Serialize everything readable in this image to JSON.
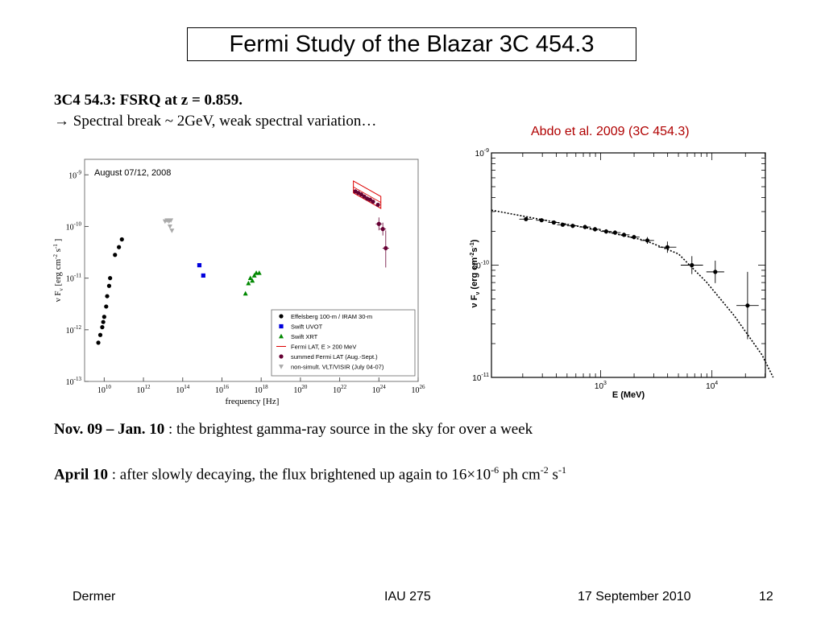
{
  "slide": {
    "title": "Fermi Study of the Blazar 3C 454.3",
    "line1": "3C4 54.3: FSRQ at z = 0.859.",
    "line2_arrow": "→",
    "line2_text": " Spectral break ~ 2GeV, weak spectral variation…",
    "citation": "Abdo et al. 2009 (3C 454.3)",
    "bullet1": {
      "bold": "Nov. 09 – Jan. 10",
      "text": " : the brightest gamma-ray source in the sky for over a week"
    },
    "bullet2": {
      "bold": "April 10",
      "text": " : after slowly decaying, the flux brightened up again to 16×10",
      "exp1": "-6",
      "unit": " ph cm",
      "exp2": "-2",
      "unit2": " s",
      "exp3": "-1"
    },
    "footer": {
      "author": "Dermer",
      "event": "IAU 275",
      "date": "17 September 2010",
      "page": "12"
    }
  },
  "chart_data": [
    {
      "type": "scatter",
      "title": "August 07/12, 2008",
      "xlabel": "frequency [Hz]",
      "ylabel": "ν F",
      "ylabel_sub": "ν",
      "ylabel_unit": " [erg cm",
      "ylabel_exp1": "-2",
      "ylabel_mid": " s",
      "ylabel_exp2": "-1",
      "ylabel_end": " ]",
      "xscale": "log",
      "yscale": "log",
      "xlim_exp": [
        9,
        26
      ],
      "ylim_exp": [
        -13,
        -8.7
      ],
      "xticks": [
        {
          "base": "10",
          "exp": "10"
        },
        {
          "base": "10",
          "exp": "12"
        },
        {
          "base": "10",
          "exp": "14"
        },
        {
          "base": "10",
          "exp": "16"
        },
        {
          "base": "10",
          "exp": "18"
        },
        {
          "base": "10",
          "exp": "20"
        },
        {
          "base": "10",
          "exp": "22"
        },
        {
          "base": "10",
          "exp": "24"
        },
        {
          "base": "10",
          "exp": "26"
        }
      ],
      "yticks": [
        {
          "base": "10",
          "exp": "-13"
        },
        {
          "base": "10",
          "exp": "-12"
        },
        {
          "base": "10",
          "exp": "-11"
        },
        {
          "base": "10",
          "exp": "-10"
        },
        {
          "base": "10",
          "exp": "-9"
        }
      ],
      "legend": [
        {
          "name": "Effelsberg 100-m / IRAM 30-m",
          "color": "#000000",
          "marker": "circle"
        },
        {
          "name": "Swift UVOT",
          "color": "#0000dd",
          "marker": "square"
        },
        {
          "name": "Swift XRT",
          "color": "#008800",
          "marker": "triangle"
        },
        {
          "name": "Fermi LAT, E > 200 MeV",
          "color": "#dd0000",
          "marker": "line"
        },
        {
          "name": "summed Fermi LAT (Aug.-Sept.)",
          "color": "#660033",
          "marker": "circle"
        },
        {
          "name": "non-simult. VLT/VISIR (July 04-07)",
          "color": "#aaaaaa",
          "marker": "triangle-down"
        }
      ],
      "series": [
        {
          "name": "Effelsberg 100-m / IRAM 30-m",
          "color": "#000000",
          "marker": "circle",
          "points": [
            [
              9.7,
              -12.25
            ],
            [
              9.8,
              -12.1
            ],
            [
              9.9,
              -11.95
            ],
            [
              9.95,
              -11.85
            ],
            [
              10.0,
              -11.75
            ],
            [
              10.1,
              -11.55
            ],
            [
              10.15,
              -11.35
            ],
            [
              10.25,
              -11.15
            ],
            [
              10.3,
              -11.0
            ],
            [
              10.55,
              -10.55
            ],
            [
              10.75,
              -10.4
            ],
            [
              10.9,
              -10.25
            ]
          ]
        },
        {
          "name": "Swift UVOT",
          "color": "#0000dd",
          "marker": "square",
          "points": [
            [
              14.85,
              -10.75
            ],
            [
              15.05,
              -10.95
            ]
          ]
        },
        {
          "name": "Swift XRT",
          "color": "#008800",
          "marker": "triangle",
          "points": [
            [
              17.2,
              -11.3
            ],
            [
              17.35,
              -11.1
            ],
            [
              17.45,
              -11.0
            ],
            [
              17.55,
              -11.05
            ],
            [
              17.65,
              -10.95
            ],
            [
              17.75,
              -10.9
            ],
            [
              17.9,
              -10.9
            ]
          ]
        },
        {
          "name": "summed Fermi LAT (Aug.-Sept.)",
          "color": "#660033",
          "marker": "circle",
          "points": [
            [
              22.8,
              -9.32
            ],
            [
              22.95,
              -9.35
            ],
            [
              23.1,
              -9.38
            ],
            [
              23.25,
              -9.42
            ],
            [
              23.4,
              -9.46
            ],
            [
              23.55,
              -9.48
            ],
            [
              23.7,
              -9.52
            ],
            [
              23.95,
              -9.58
            ],
            [
              24.0,
              -9.95
            ],
            [
              24.2,
              -10.05
            ],
            [
              24.35,
              -10.42
            ]
          ]
        },
        {
          "name": "non-simult. VLT/VISIR (July 04-07)",
          "color": "#aaaaaa",
          "marker": "triangle-down",
          "points": [
            [
              13.1,
              -9.9
            ],
            [
              13.2,
              -9.88
            ],
            [
              13.3,
              -9.9
            ],
            [
              13.4,
              -9.88
            ],
            [
              13.35,
              -10.0
            ],
            [
              13.45,
              -10.08
            ]
          ]
        }
      ],
      "bowtie": {
        "x": [
          22.7,
          24.1
        ],
        "upper": [
          -9.12,
          -9.42
        ],
        "lower": [
          -9.35,
          -9.65
        ]
      }
    },
    {
      "type": "scatter",
      "xlabel": "E (MeV)",
      "ylabel": "ν F",
      "ylabel_sub": "ν",
      "ylabel_unit": " (erg cm",
      "ylabel_exp1": "-2",
      "ylabel_mid": "s",
      "ylabel_exp2": "-1",
      "ylabel_end": ")",
      "xscale": "log",
      "yscale": "log",
      "xlim_exp": [
        2.02,
        4.48
      ],
      "ylim_exp": [
        -11,
        -9
      ],
      "xticks": [
        {
          "base": "10",
          "exp": "3",
          "value": 3
        },
        {
          "base": "10",
          "exp": "4",
          "value": 4
        }
      ],
      "yticks": [
        {
          "base": "10",
          "exp": "-11",
          "value": -11
        },
        {
          "base": "10",
          "exp": "-10",
          "value": -10
        },
        {
          "base": "10",
          "exp": "-9",
          "value": -9
        }
      ],
      "series": [
        {
          "name": "",
          "color": "#000000",
          "marker": "circle",
          "points": [
            [
              2.33,
              -9.59
            ],
            [
              2.47,
              -9.6
            ],
            [
              2.58,
              -9.62
            ],
            [
              2.66,
              -9.64
            ],
            [
              2.75,
              -9.65
            ],
            [
              2.86,
              -9.66
            ],
            [
              2.95,
              -9.68
            ],
            [
              3.05,
              -9.7
            ],
            [
              3.13,
              -9.71
            ],
            [
              3.21,
              -9.73
            ],
            [
              3.3,
              -9.75
            ],
            [
              3.42,
              -9.78
            ],
            [
              3.6,
              -9.84
            ],
            [
              3.82,
              -10.0
            ],
            [
              4.03,
              -10.06
            ],
            [
              4.32,
              -10.36
            ]
          ],
          "xerr": [
            0.06,
            0.05,
            0.05,
            0.05,
            0.05,
            0.05,
            0.05,
            0.05,
            0.05,
            0.05,
            0.05,
            0.06,
            0.08,
            0.1,
            0.08,
            0.1
          ],
          "yerr": [
            0.01,
            0.01,
            0.01,
            0.01,
            0.02,
            0.02,
            0.02,
            0.02,
            0.02,
            0.02,
            0.02,
            0.03,
            0.05,
            0.08,
            0.1,
            0.3
          ]
        }
      ],
      "model": {
        "style": "dotted",
        "points": [
          [
            2.02,
            -9.51
          ],
          [
            2.5,
            -9.6
          ],
          [
            3.0,
            -9.69
          ],
          [
            3.4,
            -9.78
          ],
          [
            3.7,
            -9.9
          ],
          [
            3.95,
            -10.15
          ],
          [
            4.2,
            -10.45
          ],
          [
            4.45,
            -10.8
          ],
          [
            4.55,
            -11.0
          ]
        ]
      }
    }
  ]
}
